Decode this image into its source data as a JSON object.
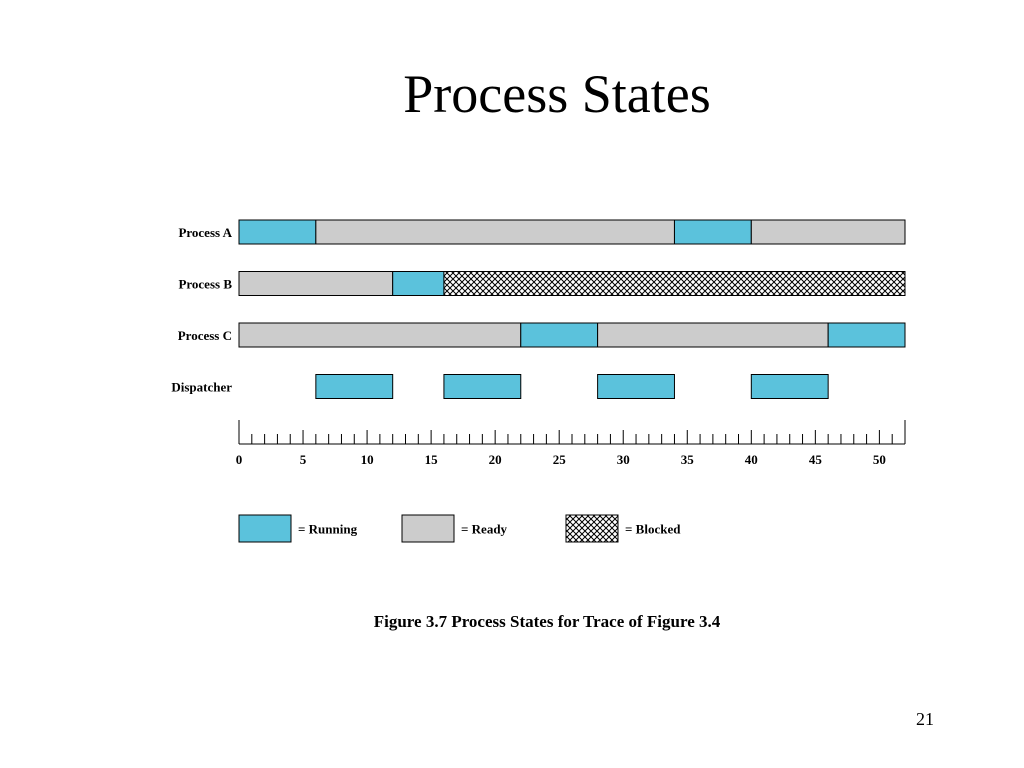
{
  "slide": {
    "title": "Process States",
    "page_number": "21"
  },
  "colors": {
    "running": "#5bc2dc",
    "ready": "#cccccc",
    "blocked_line": "#000000",
    "blocked_bg": "#ffffff",
    "outline": "#000000"
  },
  "chart_data": {
    "type": "gantt",
    "title": "",
    "caption": "Figure 3.7   Process States for Trace of Figure 3.4",
    "xlim": [
      0,
      52
    ],
    "x_ticks_major": [
      0,
      5,
      10,
      15,
      20,
      25,
      30,
      35,
      40,
      45,
      50
    ],
    "x_ticks_minor_step": 1,
    "grid": false,
    "rows": [
      {
        "name": "Process A",
        "segments": [
          {
            "start": 0,
            "end": 6,
            "state": "running"
          },
          {
            "start": 6,
            "end": 34,
            "state": "ready"
          },
          {
            "start": 34,
            "end": 40,
            "state": "running"
          },
          {
            "start": 40,
            "end": 52,
            "state": "ready"
          }
        ]
      },
      {
        "name": "Process B",
        "segments": [
          {
            "start": 0,
            "end": 12,
            "state": "ready"
          },
          {
            "start": 12,
            "end": 16,
            "state": "running"
          },
          {
            "start": 16,
            "end": 52,
            "state": "blocked"
          }
        ]
      },
      {
        "name": "Process C",
        "segments": [
          {
            "start": 0,
            "end": 22,
            "state": "ready"
          },
          {
            "start": 22,
            "end": 28,
            "state": "running"
          },
          {
            "start": 28,
            "end": 46,
            "state": "ready"
          },
          {
            "start": 46,
            "end": 52,
            "state": "running"
          }
        ]
      },
      {
        "name": "Dispatcher",
        "segments": [
          {
            "start": 6,
            "end": 12,
            "state": "running"
          },
          {
            "start": 16,
            "end": 22,
            "state": "running"
          },
          {
            "start": 28,
            "end": 34,
            "state": "running"
          },
          {
            "start": 40,
            "end": 46,
            "state": "running"
          }
        ]
      }
    ],
    "legend": [
      {
        "state": "running",
        "label": "= Running"
      },
      {
        "state": "ready",
        "label": "= Ready"
      },
      {
        "state": "blocked",
        "label": "= Blocked"
      }
    ],
    "legend_position": "bottom"
  }
}
